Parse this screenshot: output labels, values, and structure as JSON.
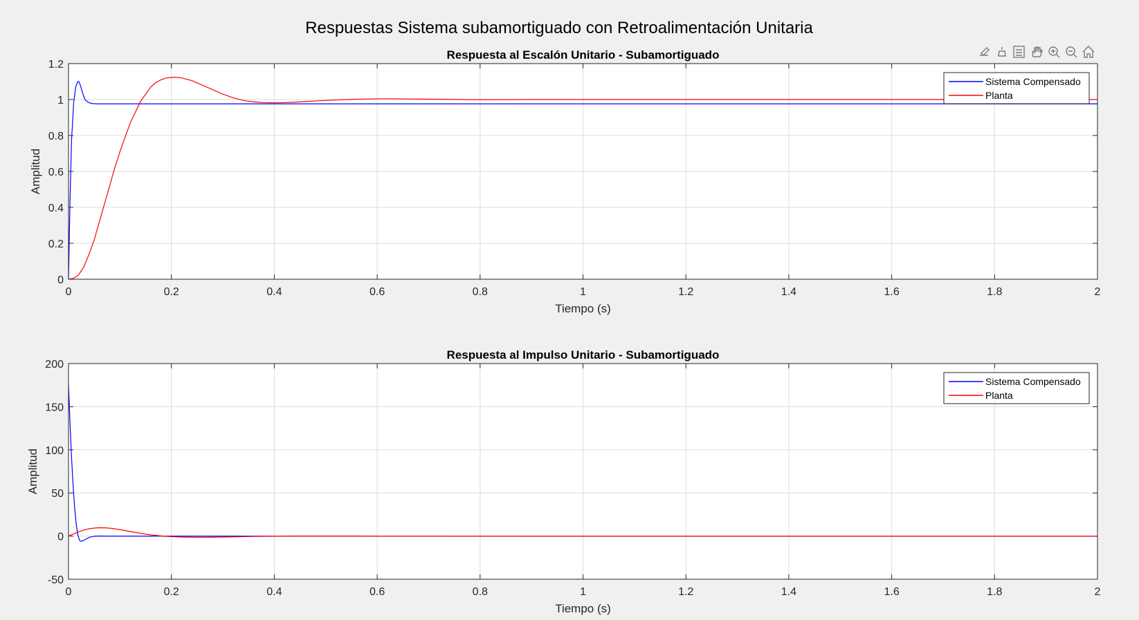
{
  "figure": {
    "title": "Respuestas Sistema subamortiguado con Retroalimentación Unitaria",
    "background": "#f0f0f0"
  },
  "toolbar": {
    "icons": [
      "brush-icon",
      "data-cursor-icon",
      "legend-icon",
      "pan-hand-icon",
      "zoom-in-icon",
      "zoom-out-icon",
      "home-icon"
    ]
  },
  "colors": {
    "sistema_compensado": "#0000ff",
    "planta": "#ff0000",
    "grid": "#dcdcdc",
    "axes": "#262626"
  },
  "chart_data": [
    {
      "type": "line",
      "title": "Respuesta al Escalón Unitario - Subamortiguado",
      "xlabel": "Tiempo (s)",
      "ylabel": "Amplitud",
      "xlim": [
        0,
        2
      ],
      "ylim": [
        0,
        1.2
      ],
      "xticks": [
        "0",
        "0.2",
        "0.4",
        "0.6",
        "0.8",
        "1",
        "1.2",
        "1.4",
        "1.6",
        "1.8",
        "2"
      ],
      "yticks": [
        "0",
        "0.2",
        "0.4",
        "0.6",
        "0.8",
        "1",
        "1.2"
      ],
      "grid": true,
      "legend_position": "top-right",
      "series": [
        {
          "name": "Sistema Compensado",
          "color": "#0000ff",
          "x": [
            0,
            0.003,
            0.006,
            0.01,
            0.014,
            0.018,
            0.02,
            0.023,
            0.027,
            0.032,
            0.038,
            0.045,
            0.055,
            0.065,
            0.08,
            0.1,
            0.15,
            0.3,
            0.5,
            1.0,
            1.5,
            2.0
          ],
          "y": [
            0,
            0.45,
            0.78,
            0.98,
            1.07,
            1.1,
            1.1,
            1.08,
            1.04,
            1.0,
            0.985,
            0.978,
            0.976,
            0.976,
            0.976,
            0.976,
            0.976,
            0.976,
            0.976,
            0.976,
            0.976,
            0.976
          ]
        },
        {
          "name": "Planta",
          "color": "#ff0000",
          "x": [
            0,
            0.01,
            0.02,
            0.03,
            0.04,
            0.05,
            0.06,
            0.07,
            0.08,
            0.09,
            0.1,
            0.11,
            0.12,
            0.13,
            0.14,
            0.15,
            0.16,
            0.17,
            0.18,
            0.19,
            0.2,
            0.21,
            0.22,
            0.24,
            0.26,
            0.28,
            0.3,
            0.32,
            0.34,
            0.36,
            0.38,
            0.4,
            0.42,
            0.45,
            0.5,
            0.55,
            0.6,
            0.63,
            0.7,
            0.8,
            0.9,
            1.0,
            1.5,
            2.0
          ],
          "y": [
            0,
            0.005,
            0.025,
            0.07,
            0.14,
            0.22,
            0.32,
            0.42,
            0.52,
            0.62,
            0.71,
            0.79,
            0.87,
            0.93,
            0.99,
            1.03,
            1.07,
            1.095,
            1.11,
            1.12,
            1.123,
            1.124,
            1.12,
            1.105,
            1.08,
            1.055,
            1.03,
            1.01,
            0.995,
            0.987,
            0.983,
            0.982,
            0.983,
            0.987,
            0.995,
            1.001,
            1.004,
            1.004,
            1.002,
            0.999,
            1.0,
            1.0,
            1.0,
            1.0
          ]
        }
      ]
    },
    {
      "type": "line",
      "title": "Respuesta al Impulso Unitario  - Subamortiguado",
      "xlabel": "Tiempo (s)",
      "ylabel": "Amplitud",
      "xlim": [
        0,
        2
      ],
      "ylim": [
        -50,
        200
      ],
      "xticks": [
        "0",
        "0.2",
        "0.4",
        "0.6",
        "0.8",
        "1",
        "1.2",
        "1.4",
        "1.6",
        "1.8",
        "2"
      ],
      "yticks": [
        "-50",
        "0",
        "50",
        "100",
        "150",
        "200"
      ],
      "grid": true,
      "legend_position": "top-right",
      "series": [
        {
          "name": "Sistema Compensado",
          "color": "#0000ff",
          "x": [
            0,
            0.003,
            0.006,
            0.009,
            0.012,
            0.015,
            0.018,
            0.021,
            0.024,
            0.028,
            0.032,
            0.037,
            0.042,
            0.05,
            0.06,
            0.07,
            0.08,
            0.1,
            0.15,
            0.2,
            0.3,
            2.0
          ],
          "y": [
            175,
            130,
            90,
            58,
            32,
            14,
            2,
            -4.5,
            -6,
            -5.5,
            -4,
            -2.5,
            -1.2,
            -0.2,
            0.1,
            0,
            0,
            0,
            0,
            0,
            0,
            0
          ]
        },
        {
          "name": "Planta",
          "color": "#ff0000",
          "x": [
            0,
            0.01,
            0.02,
            0.03,
            0.04,
            0.05,
            0.06,
            0.07,
            0.08,
            0.09,
            0.1,
            0.12,
            0.14,
            0.16,
            0.18,
            0.2,
            0.22,
            0.25,
            0.28,
            0.3,
            0.33,
            0.36,
            0.4,
            0.45,
            0.5,
            0.6,
            1.0,
            2.0
          ],
          "y": [
            0,
            2.5,
            5,
            7,
            8.5,
            9.3,
            9.7,
            9.6,
            9.2,
            8.4,
            7.5,
            5.3,
            3.2,
            1.4,
            0.2,
            -0.6,
            -1.1,
            -1.4,
            -1.3,
            -1.1,
            -0.7,
            -0.35,
            -0.05,
            0.1,
            0.1,
            0.02,
            0,
            0
          ]
        }
      ]
    }
  ]
}
